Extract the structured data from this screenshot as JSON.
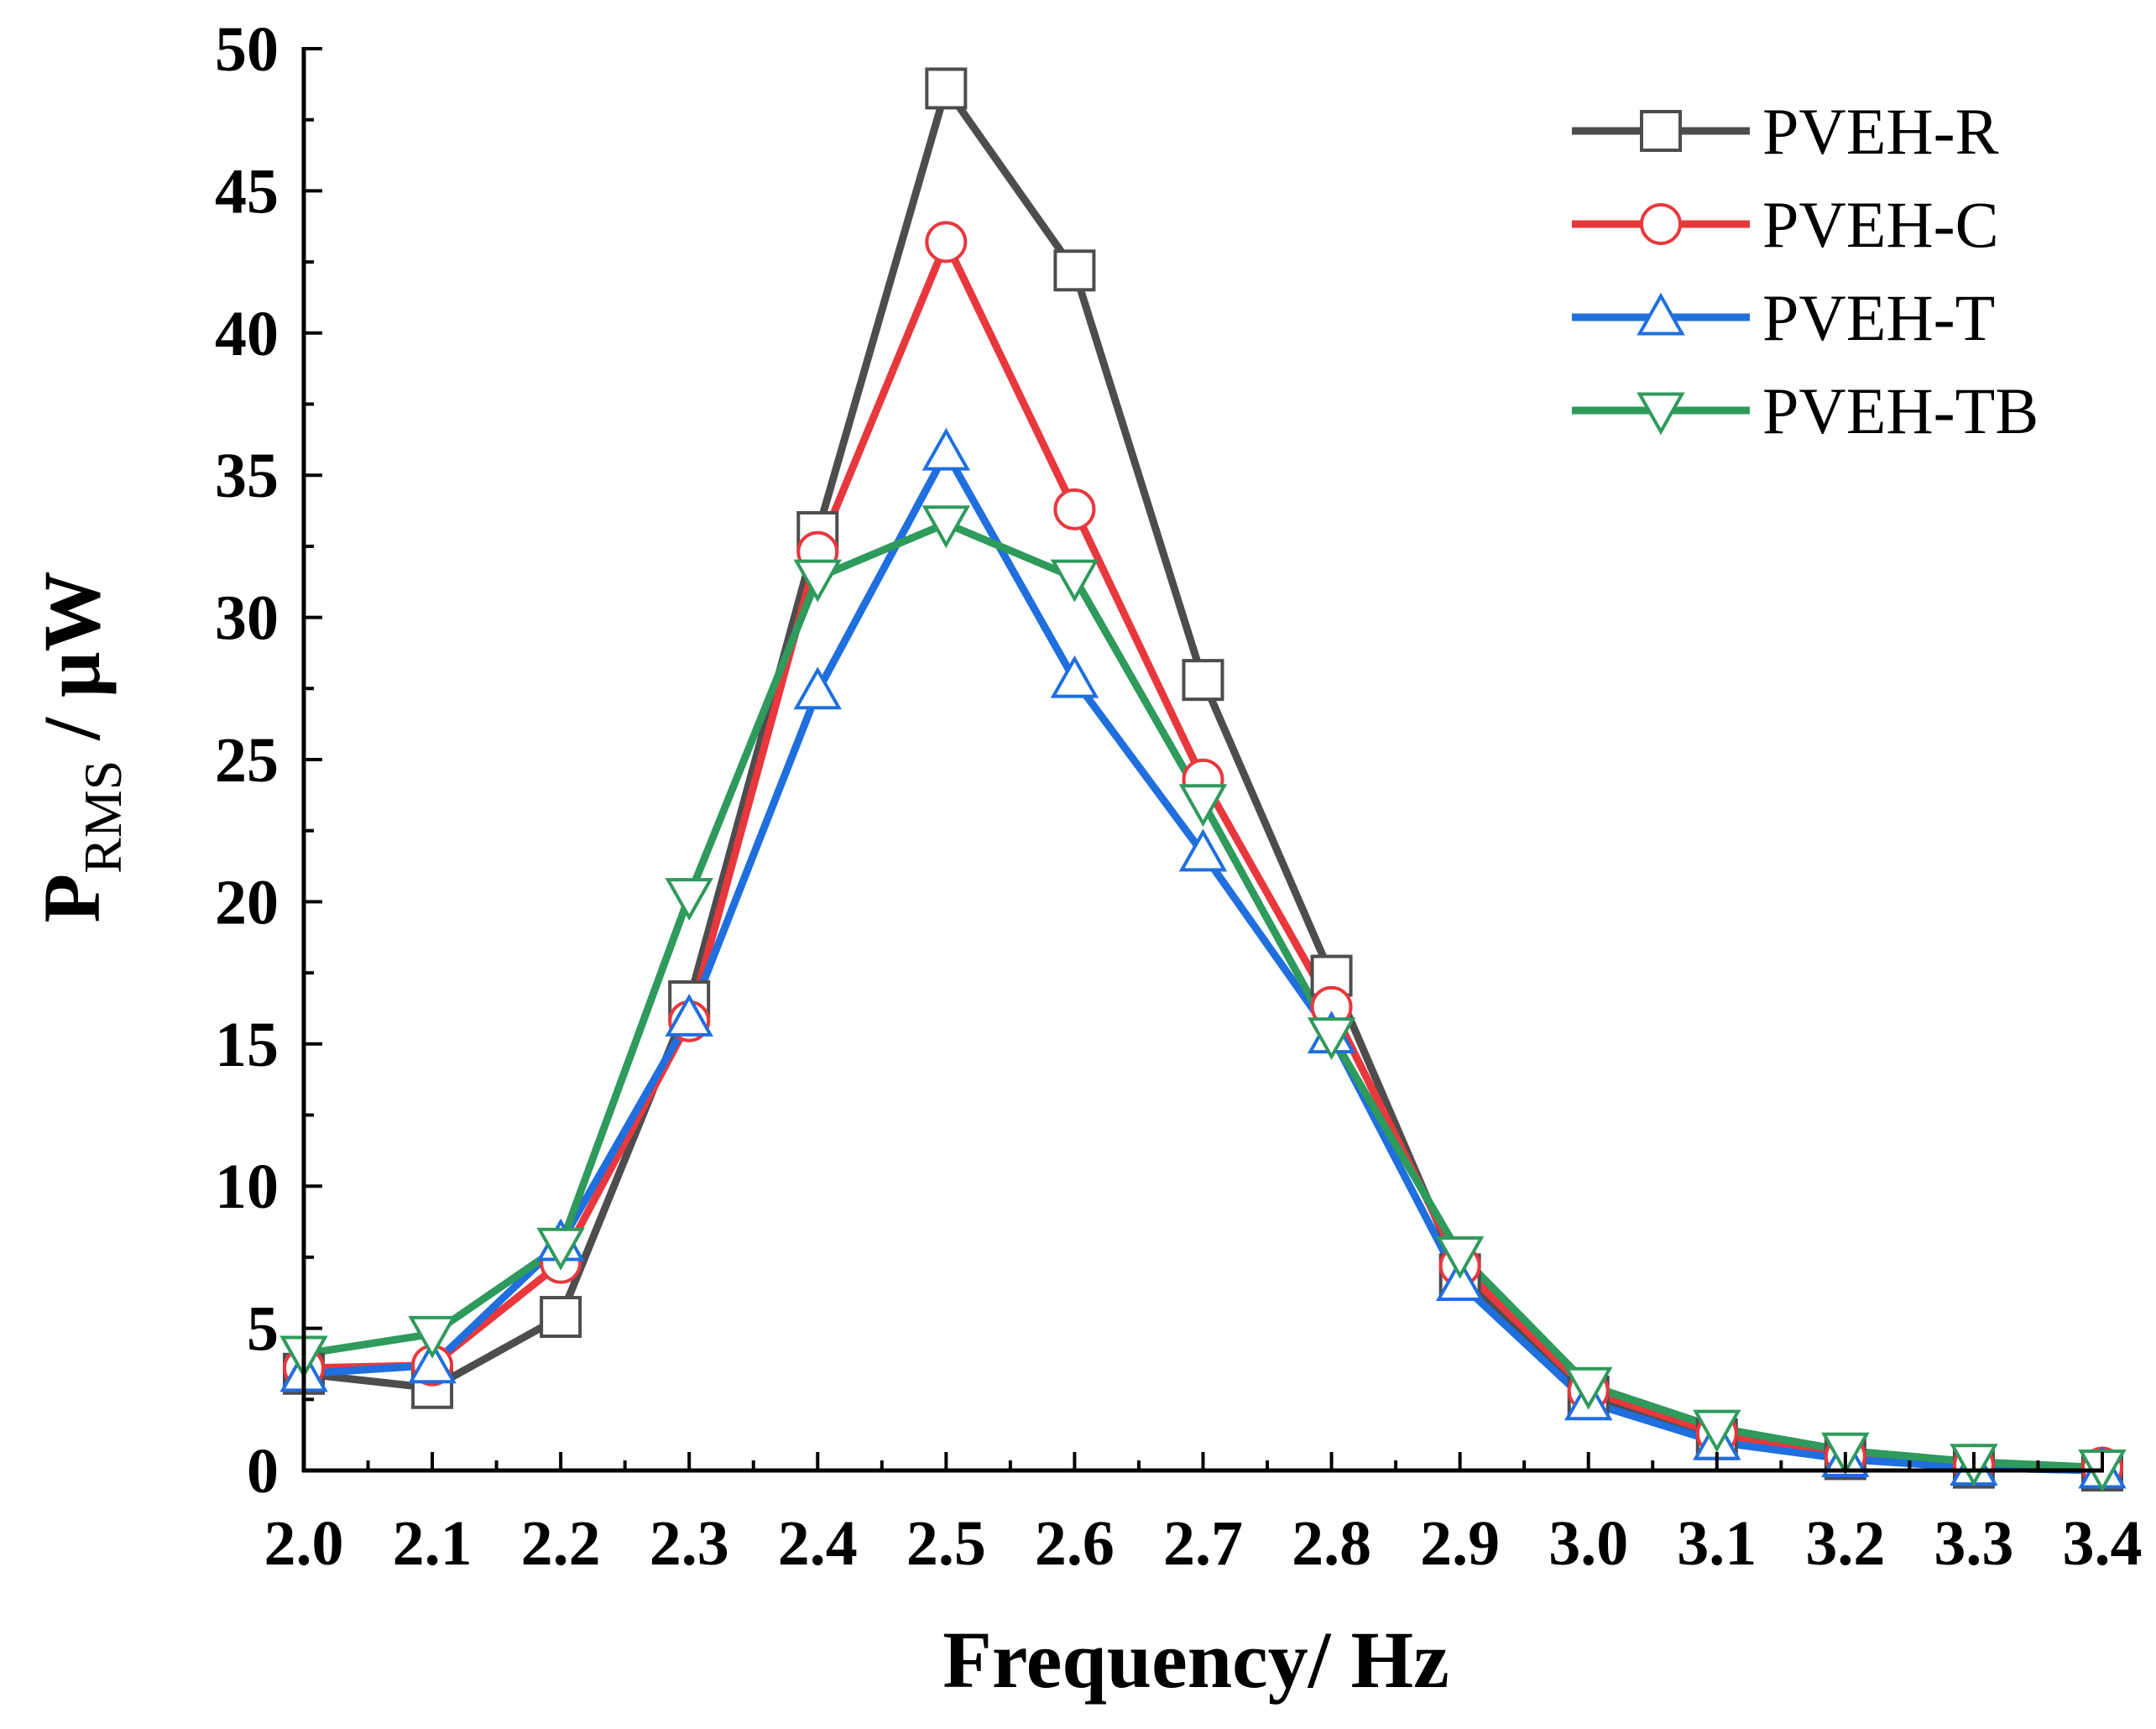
{
  "chart_data": {
    "type": "line",
    "title": "",
    "xlabel": "Frequency/ Hz",
    "ylabel": {
      "main": "P",
      "subscript": "RMS",
      "suffix": " / μW"
    },
    "xlim": [
      2.0,
      3.4
    ],
    "ylim": [
      0,
      50
    ],
    "xticks": [
      2.0,
      2.1,
      2.2,
      2.3,
      2.4,
      2.5,
      2.6,
      2.7,
      2.8,
      2.9,
      3.0,
      3.1,
      3.2,
      3.3,
      3.4
    ],
    "xtick_labels": [
      "2.0",
      "2.1",
      "2.2",
      "2.3",
      "2.4",
      "2.5",
      "2.6",
      "2.7",
      "2.8",
      "2.9",
      "3.0",
      "3.1",
      "3.2",
      "3.3",
      "3.4"
    ],
    "yticks": [
      0,
      5,
      10,
      15,
      20,
      25,
      30,
      35,
      40,
      45,
      50
    ],
    "ytick_labels": [
      "0",
      "5",
      "10",
      "15",
      "20",
      "25",
      "30",
      "35",
      "40",
      "45",
      "50"
    ],
    "grid": false,
    "legend_position": "top-right",
    "x": [
      2.0,
      2.1,
      2.2,
      2.3,
      2.4,
      2.5,
      2.6,
      2.7,
      2.8,
      2.9,
      3.0,
      3.1,
      3.2,
      3.3,
      3.4
    ],
    "series": [
      {
        "name": "PVEH-R",
        "color": "#4d4d4d",
        "marker": "square",
        "values": [
          3.4,
          2.9,
          5.4,
          16.5,
          33.0,
          48.6,
          42.2,
          27.8,
          17.4,
          6.9,
          2.6,
          1.1,
          0.4,
          0.1,
          0.0
        ]
      },
      {
        "name": "PVEH-C",
        "color": "#e8383d",
        "marker": "circle",
        "values": [
          3.6,
          3.7,
          7.3,
          15.8,
          32.3,
          43.2,
          33.8,
          24.3,
          16.3,
          7.2,
          2.8,
          1.3,
          0.5,
          0.2,
          0.1
        ]
      },
      {
        "name": "PVEH-T",
        "color": "#1f6fde",
        "marker": "triangle-up",
        "values": [
          3.4,
          3.7,
          8.0,
          15.9,
          27.4,
          35.8,
          27.8,
          21.7,
          15.3,
          6.6,
          2.4,
          1.0,
          0.4,
          0.1,
          0.0
        ]
      },
      {
        "name": "PVEH-TB",
        "color": "#2e9a5c",
        "marker": "triangle-down",
        "values": [
          4.1,
          4.8,
          7.9,
          20.2,
          31.4,
          33.3,
          31.4,
          23.5,
          15.3,
          7.6,
          3.0,
          1.5,
          0.7,
          0.3,
          0.1
        ]
      }
    ]
  }
}
